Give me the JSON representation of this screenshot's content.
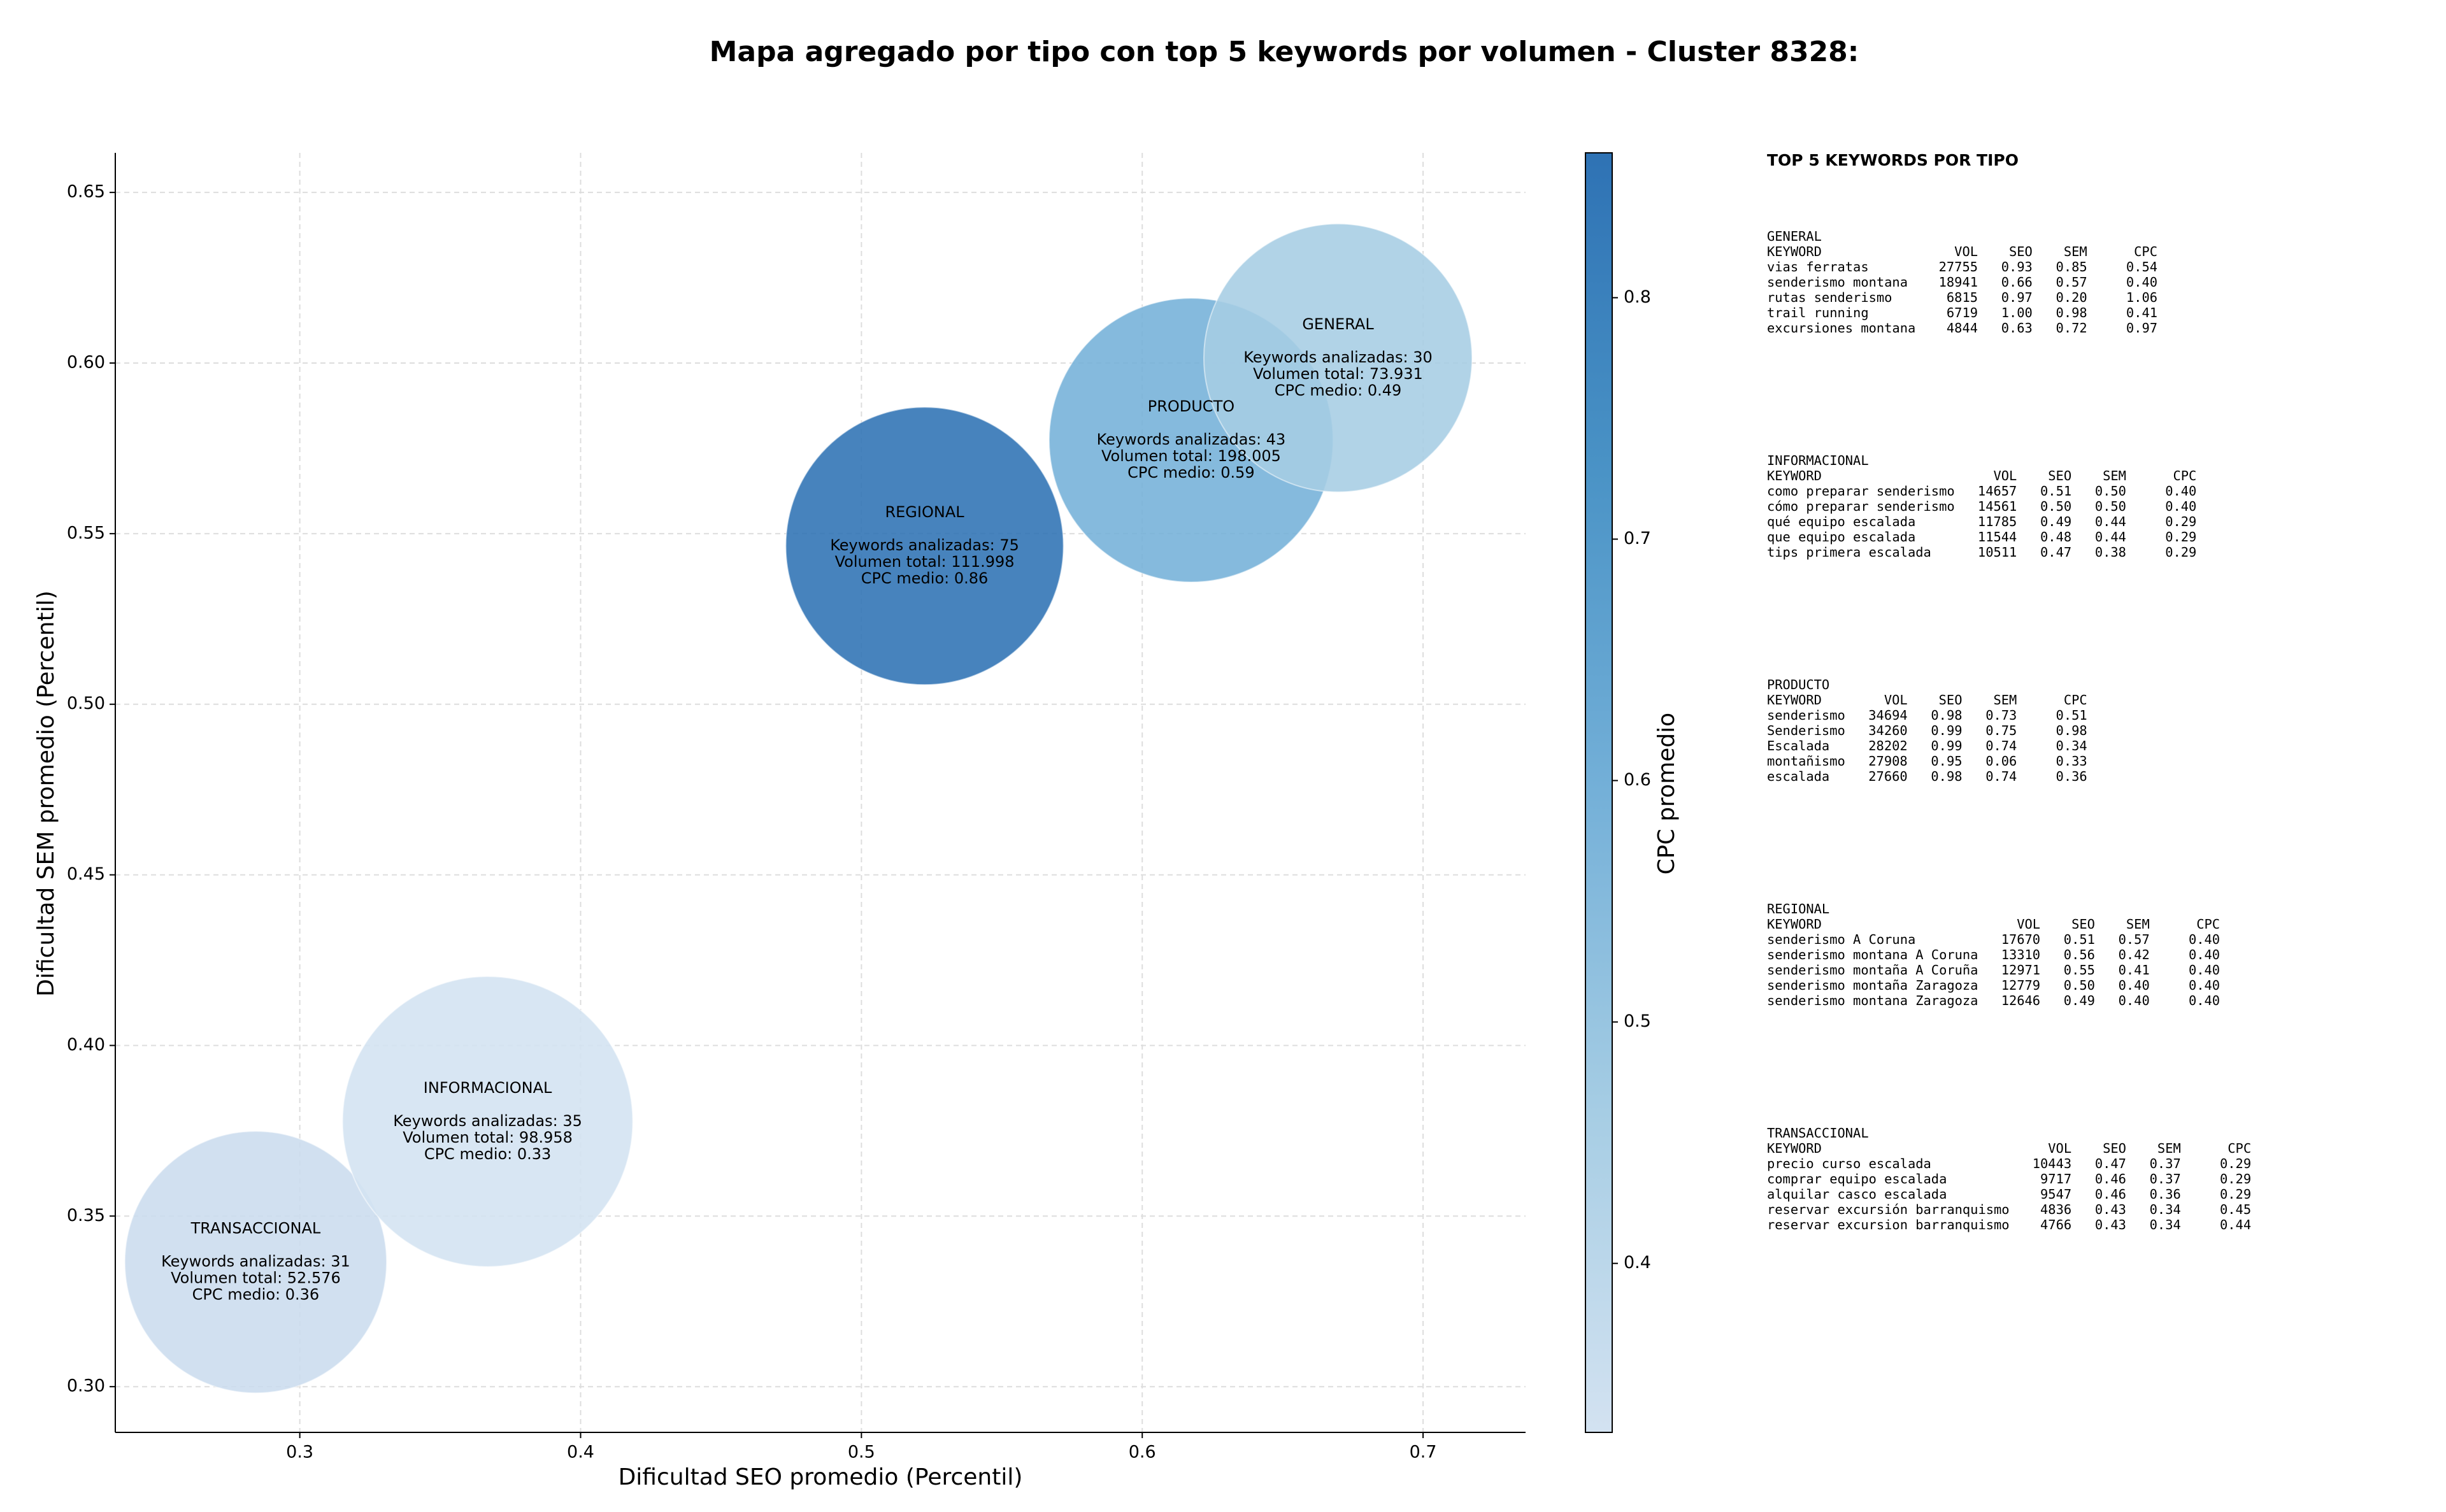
{
  "chart_data": {
    "type": "bubble",
    "title": "Mapa agregado por tipo con top 5 keywords por volumen - Cluster 8328:",
    "x_label": "Dificultad SEO promedio (Percentil)",
    "y_label": "Dificultad SEM promedio (Percentil)",
    "xlim": [
      0.2343,
      0.7365
    ],
    "xticks": [
      0.3,
      0.4,
      0.5,
      0.6,
      0.7
    ],
    "ylim": [
      0.2866,
      0.6616
    ],
    "yticks": [
      {
        "value": 0.3,
        "label": "0.30"
      },
      0.35,
      {
        "value": 0.4,
        "label": "0.40"
      },
      0.45,
      {
        "value": 0.5,
        "label": "0.50"
      },
      0.55,
      {
        "value": 0.6,
        "label": "0.60"
      },
      0.65
    ],
    "grid": true,
    "points": [
      {
        "label": "TRANSACCIONAL",
        "x": 0.2843,
        "y": 0.3365,
        "size": 6889,
        "color": "#cbdcee",
        "lines": [
          "Keywords analizadas: 31",
          "Volumen total: 52.576",
          "CPC medio: 0.36"
        ]
      },
      {
        "label": "INFORMACIONAL",
        "x": 0.3669,
        "y": 0.3777,
        "size": 8464,
        "color": "#d3e2f1",
        "lines": [
          "Keywords analizadas: 35",
          "Volumen total: 98.958",
          "CPC medio: 0.33"
        ]
      },
      {
        "label": "REGIONAL",
        "x": 0.5225,
        "y": 0.5464,
        "size": 7744,
        "color": "#2e72b4",
        "lines": [
          "Keywords analizadas: 75",
          "Volumen total: 111.998",
          "CPC medio: 0.86"
        ]
      },
      {
        "label": "PRODUCTO",
        "x": 0.6174,
        "y": 0.5774,
        "size": 8100,
        "color": "#74b0d8",
        "lines": [
          "Keywords analizadas: 43",
          "Volumen total: 198.005",
          "CPC medio: 0.59"
        ]
      },
      {
        "label": "GENERAL",
        "x": 0.6697,
        "y": 0.6015,
        "size": 7225,
        "color": "#a6cde4",
        "lines": [
          "Keywords analizadas: 30",
          "Volumen total: 73.931",
          "CPC medio: 0.49"
        ]
      }
    ],
    "colorbar": {
      "label": "CPC promedio",
      "lim": [
        0.33,
        0.86
      ],
      "ticks": [
        0.4,
        0.5,
        0.6,
        0.7,
        0.8
      ],
      "colors": [
        "#d3e2f1",
        "#a6cde4",
        "#74b0d8",
        "#4a93c6",
        "#2e72b4"
      ]
    },
    "side_panel": {
      "title": "TOP 5 KEYWORDS POR TIPO",
      "tables": [
        {
          "name": "GENERAL",
          "header": [
            "KEYWORD",
            "VOL",
            "SEO",
            "SEM",
            "CPC"
          ],
          "rows": [
            [
              "vias ferratas",
              "27755",
              "0.93",
              "0.85",
              "0.54"
            ],
            [
              "senderismo montana",
              "18941",
              "0.66",
              "0.57",
              "0.40"
            ],
            [
              "rutas senderismo",
              "6815",
              "0.97",
              "0.20",
              "1.06"
            ],
            [
              "trail running",
              "6719",
              "1.00",
              "0.98",
              "0.41"
            ],
            [
              "excursiones montana",
              "4844",
              "0.63",
              "0.72",
              "0.97"
            ]
          ]
        },
        {
          "name": "INFORMACIONAL",
          "header": [
            "KEYWORD",
            "VOL",
            "SEO",
            "SEM",
            "CPC"
          ],
          "rows": [
            [
              "como preparar senderismo",
              "14657",
              "0.51",
              "0.50",
              "0.40"
            ],
            [
              "cómo preparar senderismo",
              "14561",
              "0.50",
              "0.50",
              "0.40"
            ],
            [
              "qué equipo escalada",
              "11785",
              "0.49",
              "0.44",
              "0.29"
            ],
            [
              "que equipo escalada",
              "11544",
              "0.48",
              "0.44",
              "0.29"
            ],
            [
              "tips primera escalada",
              "10511",
              "0.47",
              "0.38",
              "0.29"
            ]
          ]
        },
        {
          "name": "PRODUCTO",
          "header": [
            "KEYWORD",
            "VOL",
            "SEO",
            "SEM",
            "CPC"
          ],
          "rows": [
            [
              "senderismo",
              "34694",
              "0.98",
              "0.73",
              "0.51"
            ],
            [
              "Senderismo",
              "34260",
              "0.99",
              "0.75",
              "0.98"
            ],
            [
              "Escalada",
              "28202",
              "0.99",
              "0.74",
              "0.34"
            ],
            [
              "montañismo",
              "27908",
              "0.95",
              "0.06",
              "0.33"
            ],
            [
              "escalada",
              "27660",
              "0.98",
              "0.74",
              "0.36"
            ]
          ]
        },
        {
          "name": "REGIONAL",
          "header": [
            "KEYWORD",
            "VOL",
            "SEO",
            "SEM",
            "CPC"
          ],
          "rows": [
            [
              "senderismo A Coruna",
              "17670",
              "0.51",
              "0.57",
              "0.40"
            ],
            [
              "senderismo montana A Coruna",
              "13310",
              "0.56",
              "0.42",
              "0.40"
            ],
            [
              "senderismo montaña A Coruña",
              "12971",
              "0.55",
              "0.41",
              "0.40"
            ],
            [
              "senderismo montaña Zaragoza",
              "12779",
              "0.50",
              "0.40",
              "0.40"
            ],
            [
              "senderismo montana Zaragoza",
              "12646",
              "0.49",
              "0.40",
              "0.40"
            ]
          ]
        },
        {
          "name": "TRANSACCIONAL",
          "header": [
            "KEYWORD",
            "VOL",
            "SEO",
            "SEM",
            "CPC"
          ],
          "rows": [
            [
              "precio curso escalada",
              "10443",
              "0.47",
              "0.37",
              "0.29"
            ],
            [
              "comprar equipo escalada",
              "9717",
              "0.46",
              "0.37",
              "0.29"
            ],
            [
              "alquilar casco escalada",
              "9547",
              "0.46",
              "0.36",
              "0.29"
            ],
            [
              "reservar excursión barranquismo",
              "4836",
              "0.43",
              "0.34",
              "0.45"
            ],
            [
              "reservar excursion barranquismo",
              "4766",
              "0.43",
              "0.34",
              "0.44"
            ]
          ]
        }
      ]
    }
  }
}
